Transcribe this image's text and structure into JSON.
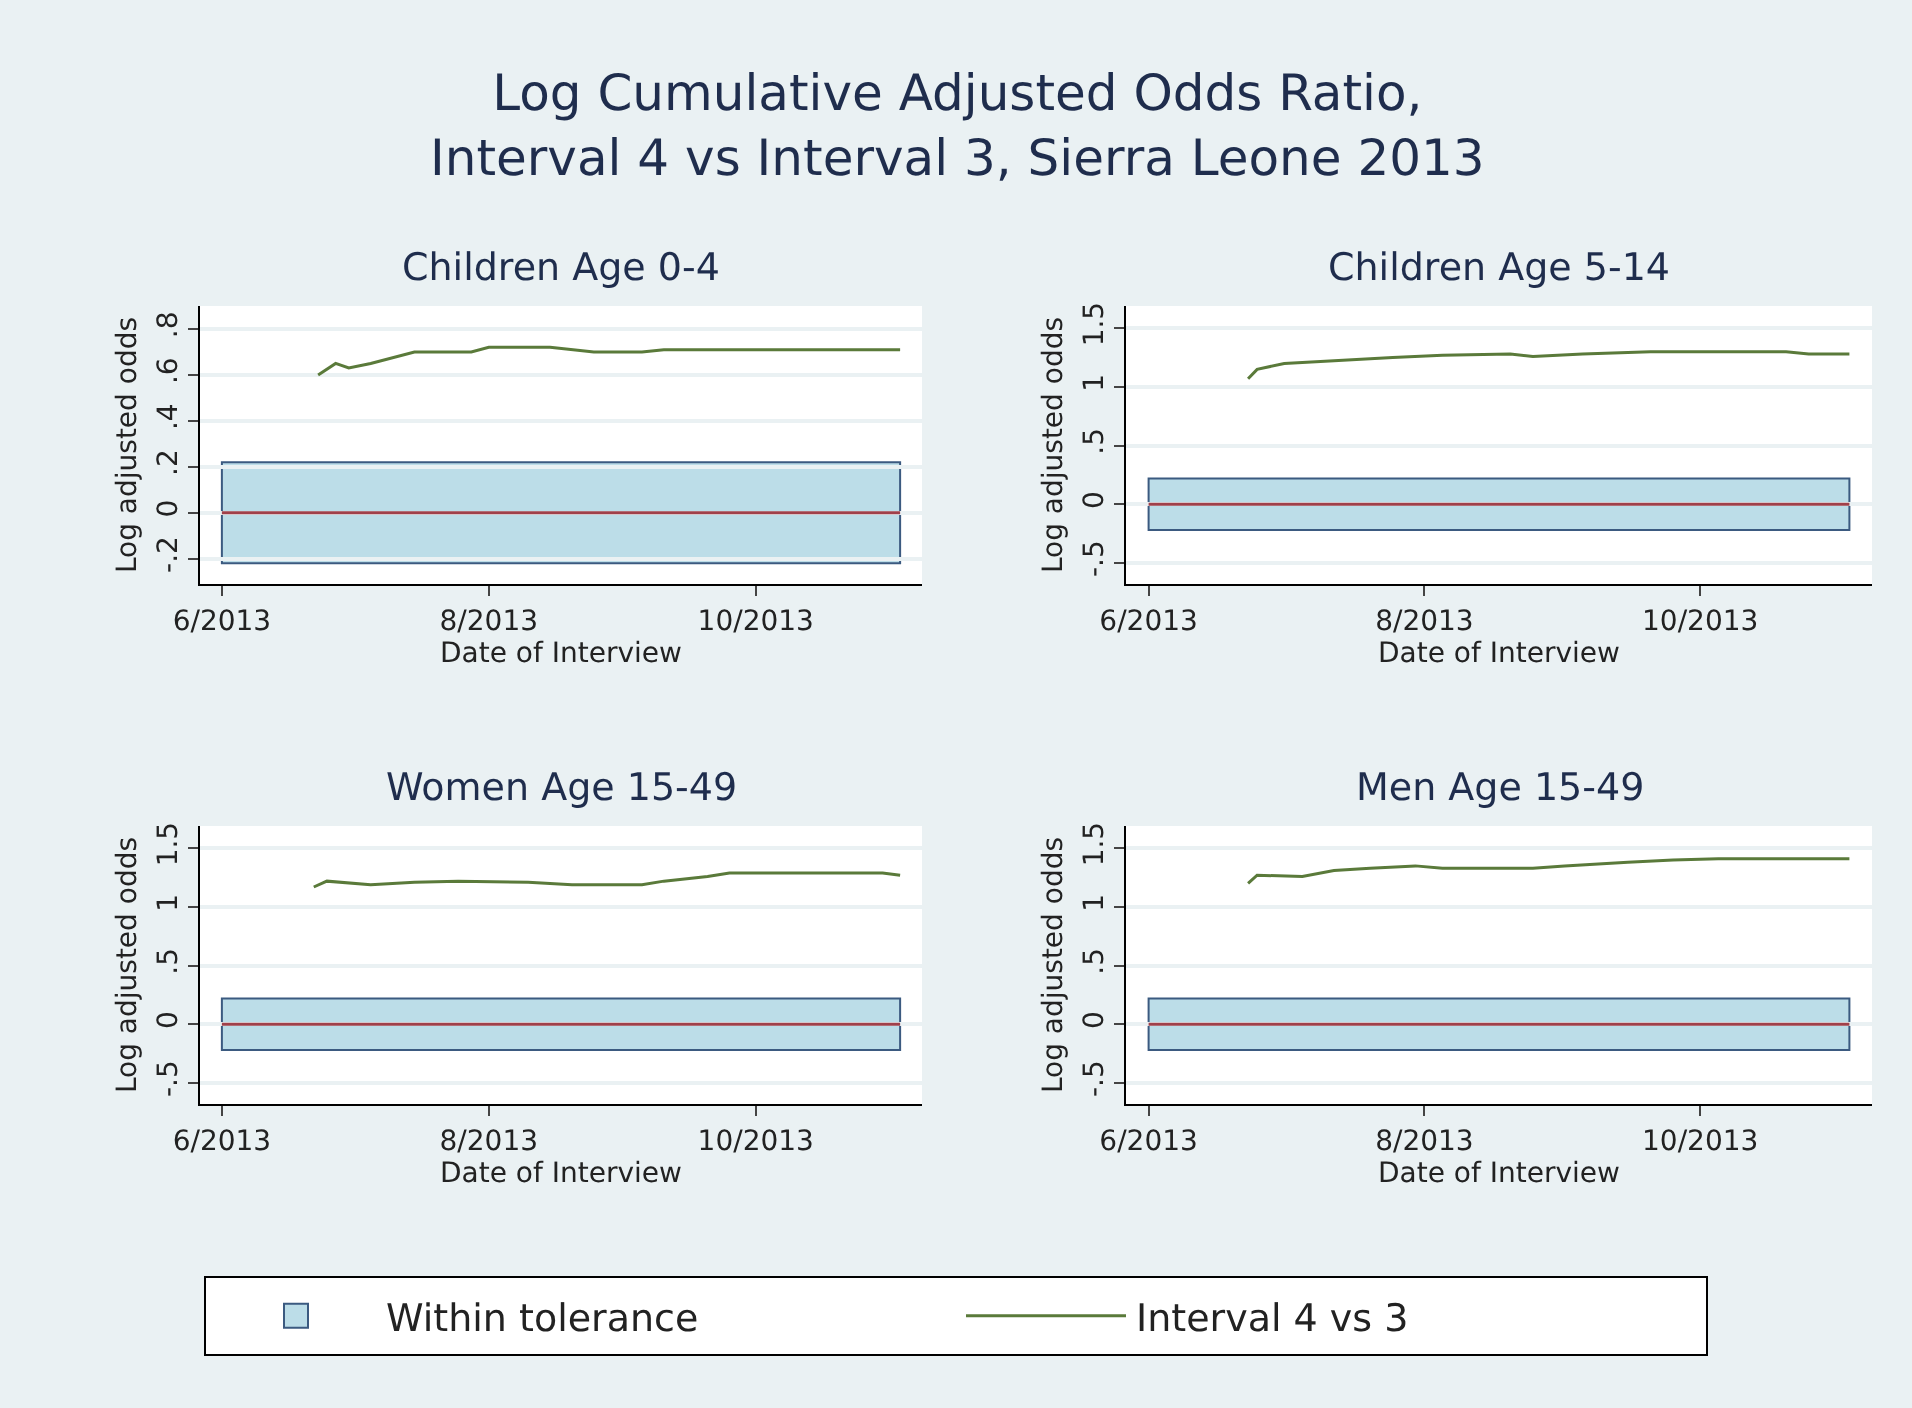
{
  "chart_data": [
    {
      "type": "line",
      "title": "Children Age 0-4",
      "xlabel": "Date of Interview",
      "ylabel": "Log adjusted odds",
      "annotations": [
        "Log Cumulative Adjusted Odds Ratio,\nInterval 4 vs Interval 3, Sierra Leone 2013"
      ],
      "xlim": [
        "2013-05-27",
        "2013-11-08"
      ],
      "xticks": [
        {
          "value": "2013-06-01",
          "label": "6/2013"
        },
        {
          "value": "2013-08-01",
          "label": "8/2013"
        },
        {
          "value": "2013-10-01",
          "label": "10/2013"
        }
      ],
      "ylim": [
        -0.31,
        0.9
      ],
      "yticks": [
        {
          "value": -0.2,
          "label": "-.2"
        },
        0,
        {
          "value": 0.2,
          "label": ".2"
        },
        {
          "value": 0.4,
          "label": ".4"
        },
        {
          "value": 0.6,
          "label": ".6"
        },
        {
          "value": 0.8,
          "label": ".8"
        }
      ],
      "x": [
        "2013-06-23",
        "2013-06-27",
        "2013-06-30",
        "2013-07-05",
        "2013-07-15",
        "2013-07-28",
        "2013-08-01",
        "2013-08-15",
        "2013-08-25",
        "2013-09-05",
        "2013-09-10",
        "2013-11-03"
      ],
      "series": [
        {
          "name": "Interval 4 vs 3",
          "color": "#5a7a3a",
          "values": [
            0.6,
            0.65,
            0.63,
            0.65,
            0.7,
            0.7,
            0.72,
            0.72,
            0.7,
            0.7,
            0.71,
            0.71
          ]
        }
      ],
      "bands": [
        {
          "axis": "y",
          "from": -0.22,
          "to": 0.22,
          "label": "Within tolerance",
          "color": "#bcdde8"
        }
      ],
      "ref_lines": [
        {
          "axis": "y",
          "value": 0,
          "color": "#a0404a"
        }
      ],
      "grid": "y",
      "legend": "bottom"
    },
    {
      "type": "line",
      "title": "Children Age 5-14",
      "xlabel": "Date of Interview",
      "ylabel": "Log adjusted odds",
      "xlim": [
        "2013-05-27",
        "2013-11-08"
      ],
      "xticks": [
        {
          "value": "2013-06-01",
          "label": "6/2013"
        },
        {
          "value": "2013-08-01",
          "label": "8/2013"
        },
        {
          "value": "2013-10-01",
          "label": "10/2013"
        }
      ],
      "ylim": [
        -0.68,
        1.69
      ],
      "yticks": [
        {
          "value": -0.5,
          "label": "-.5"
        },
        0,
        {
          "value": 0.5,
          "label": ".5"
        },
        1,
        1.5
      ],
      "x": [
        "2013-06-23",
        "2013-06-25",
        "2013-07-01",
        "2013-07-10",
        "2013-07-25",
        "2013-08-05",
        "2013-08-20",
        "2013-08-25",
        "2013-09-05",
        "2013-09-20",
        "2013-10-20",
        "2013-10-25",
        "2013-11-03"
      ],
      "series": [
        {
          "color": "#5a7a3a",
          "values": [
            1.07,
            1.15,
            1.2,
            1.22,
            1.25,
            1.27,
            1.28,
            1.26,
            1.28,
            1.3,
            1.3,
            1.28,
            1.28
          ]
        }
      ],
      "bands": [
        {
          "axis": "y",
          "from": -0.22,
          "to": 0.22,
          "color": "#bcdde8"
        }
      ],
      "ref_lines": [
        {
          "axis": "y",
          "value": 0,
          "color": "#a0404a"
        }
      ],
      "grid": "y"
    },
    {
      "type": "line",
      "title": "Women Age 15-49",
      "xlabel": "Date of Interview",
      "ylabel": "Log adjusted odds",
      "xlim": [
        "2013-05-27",
        "2013-11-08"
      ],
      "xticks": [
        {
          "value": "2013-06-01",
          "label": "6/2013"
        },
        {
          "value": "2013-08-01",
          "label": "8/2013"
        },
        {
          "value": "2013-10-01",
          "label": "10/2013"
        }
      ],
      "ylim": [
        -0.68,
        1.69
      ],
      "yticks": [
        {
          "value": -0.5,
          "label": "-.5"
        },
        0,
        {
          "value": 0.5,
          "label": ".5"
        },
        1,
        1.5
      ],
      "x": [
        "2013-06-22",
        "2013-06-25",
        "2013-07-05",
        "2013-07-15",
        "2013-07-25",
        "2013-08-10",
        "2013-08-20",
        "2013-09-05",
        "2013-09-10",
        "2013-09-20",
        "2013-09-25",
        "2013-10-30",
        "2013-11-03"
      ],
      "series": [
        {
          "color": "#5a7a3a",
          "values": [
            1.17,
            1.22,
            1.19,
            1.21,
            1.22,
            1.21,
            1.19,
            1.19,
            1.22,
            1.26,
            1.29,
            1.29,
            1.27
          ]
        }
      ],
      "bands": [
        {
          "axis": "y",
          "from": -0.22,
          "to": 0.22,
          "color": "#bcdde8"
        }
      ],
      "ref_lines": [
        {
          "axis": "y",
          "value": 0,
          "color": "#a0404a"
        }
      ],
      "grid": "y"
    },
    {
      "type": "line",
      "title": "Men Age 15-49",
      "xlabel": "Date of Interview",
      "ylabel": "Log adjusted odds",
      "xlim": [
        "2013-05-27",
        "2013-11-08"
      ],
      "xticks": [
        {
          "value": "2013-06-01",
          "label": "6/2013"
        },
        {
          "value": "2013-08-01",
          "label": "8/2013"
        },
        {
          "value": "2013-10-01",
          "label": "10/2013"
        }
      ],
      "ylim": [
        -0.68,
        1.69
      ],
      "yticks": [
        {
          "value": -0.5,
          "label": "-.5"
        },
        0,
        {
          "value": 0.5,
          "label": ".5"
        },
        1,
        1.5
      ],
      "x": [
        "2013-06-23",
        "2013-06-25",
        "2013-07-05",
        "2013-07-12",
        "2013-07-20",
        "2013-07-30",
        "2013-08-05",
        "2013-08-25",
        "2013-09-01",
        "2013-09-15",
        "2013-09-25",
        "2013-10-05",
        "2013-11-03"
      ],
      "series": [
        {
          "color": "#5a7a3a",
          "values": [
            1.2,
            1.27,
            1.26,
            1.31,
            1.33,
            1.35,
            1.33,
            1.33,
            1.35,
            1.38,
            1.4,
            1.41,
            1.41
          ]
        }
      ],
      "bands": [
        {
          "axis": "y",
          "from": -0.22,
          "to": 0.22,
          "color": "#bcdde8"
        }
      ],
      "ref_lines": [
        {
          "axis": "y",
          "value": 0,
          "color": "#a0404a"
        }
      ],
      "grid": "y"
    }
  ]
}
